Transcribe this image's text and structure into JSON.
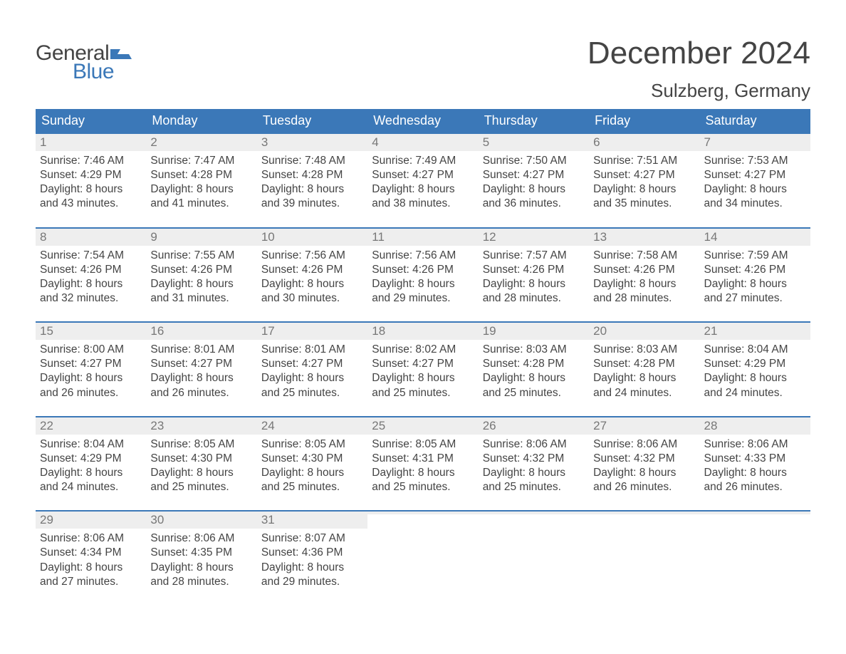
{
  "logo": {
    "word1": "General",
    "word2": "Blue",
    "flag_color": "#3b78b8"
  },
  "title": "December 2024",
  "subtitle": "Sulzberg, Germany",
  "colors": {
    "header_bg": "#3b78b8",
    "header_text": "#ffffff",
    "daynum_bg": "#eeeeee",
    "daynum_text": "#777777",
    "body_text": "#444444",
    "week_border": "#3b78b8",
    "page_bg": "#ffffff"
  },
  "fonts": {
    "title_size_pt": 33,
    "subtitle_size_pt": 20,
    "dow_size_pt": 14,
    "daynum_size_pt": 13,
    "body_size_pt": 12
  },
  "dow": [
    "Sunday",
    "Monday",
    "Tuesday",
    "Wednesday",
    "Thursday",
    "Friday",
    "Saturday"
  ],
  "weeks": [
    [
      {
        "n": "1",
        "sunrise": "Sunrise: 7:46 AM",
        "sunset": "Sunset: 4:29 PM",
        "d1": "Daylight: 8 hours",
        "d2": "and 43 minutes."
      },
      {
        "n": "2",
        "sunrise": "Sunrise: 7:47 AM",
        "sunset": "Sunset: 4:28 PM",
        "d1": "Daylight: 8 hours",
        "d2": "and 41 minutes."
      },
      {
        "n": "3",
        "sunrise": "Sunrise: 7:48 AM",
        "sunset": "Sunset: 4:28 PM",
        "d1": "Daylight: 8 hours",
        "d2": "and 39 minutes."
      },
      {
        "n": "4",
        "sunrise": "Sunrise: 7:49 AM",
        "sunset": "Sunset: 4:27 PM",
        "d1": "Daylight: 8 hours",
        "d2": "and 38 minutes."
      },
      {
        "n": "5",
        "sunrise": "Sunrise: 7:50 AM",
        "sunset": "Sunset: 4:27 PM",
        "d1": "Daylight: 8 hours",
        "d2": "and 36 minutes."
      },
      {
        "n": "6",
        "sunrise": "Sunrise: 7:51 AM",
        "sunset": "Sunset: 4:27 PM",
        "d1": "Daylight: 8 hours",
        "d2": "and 35 minutes."
      },
      {
        "n": "7",
        "sunrise": "Sunrise: 7:53 AM",
        "sunset": "Sunset: 4:27 PM",
        "d1": "Daylight: 8 hours",
        "d2": "and 34 minutes."
      }
    ],
    [
      {
        "n": "8",
        "sunrise": "Sunrise: 7:54 AM",
        "sunset": "Sunset: 4:26 PM",
        "d1": "Daylight: 8 hours",
        "d2": "and 32 minutes."
      },
      {
        "n": "9",
        "sunrise": "Sunrise: 7:55 AM",
        "sunset": "Sunset: 4:26 PM",
        "d1": "Daylight: 8 hours",
        "d2": "and 31 minutes."
      },
      {
        "n": "10",
        "sunrise": "Sunrise: 7:56 AM",
        "sunset": "Sunset: 4:26 PM",
        "d1": "Daylight: 8 hours",
        "d2": "and 30 minutes."
      },
      {
        "n": "11",
        "sunrise": "Sunrise: 7:56 AM",
        "sunset": "Sunset: 4:26 PM",
        "d1": "Daylight: 8 hours",
        "d2": "and 29 minutes."
      },
      {
        "n": "12",
        "sunrise": "Sunrise: 7:57 AM",
        "sunset": "Sunset: 4:26 PM",
        "d1": "Daylight: 8 hours",
        "d2": "and 28 minutes."
      },
      {
        "n": "13",
        "sunrise": "Sunrise: 7:58 AM",
        "sunset": "Sunset: 4:26 PM",
        "d1": "Daylight: 8 hours",
        "d2": "and 28 minutes."
      },
      {
        "n": "14",
        "sunrise": "Sunrise: 7:59 AM",
        "sunset": "Sunset: 4:26 PM",
        "d1": "Daylight: 8 hours",
        "d2": "and 27 minutes."
      }
    ],
    [
      {
        "n": "15",
        "sunrise": "Sunrise: 8:00 AM",
        "sunset": "Sunset: 4:27 PM",
        "d1": "Daylight: 8 hours",
        "d2": "and 26 minutes."
      },
      {
        "n": "16",
        "sunrise": "Sunrise: 8:01 AM",
        "sunset": "Sunset: 4:27 PM",
        "d1": "Daylight: 8 hours",
        "d2": "and 26 minutes."
      },
      {
        "n": "17",
        "sunrise": "Sunrise: 8:01 AM",
        "sunset": "Sunset: 4:27 PM",
        "d1": "Daylight: 8 hours",
        "d2": "and 25 minutes."
      },
      {
        "n": "18",
        "sunrise": "Sunrise: 8:02 AM",
        "sunset": "Sunset: 4:27 PM",
        "d1": "Daylight: 8 hours",
        "d2": "and 25 minutes."
      },
      {
        "n": "19",
        "sunrise": "Sunrise: 8:03 AM",
        "sunset": "Sunset: 4:28 PM",
        "d1": "Daylight: 8 hours",
        "d2": "and 25 minutes."
      },
      {
        "n": "20",
        "sunrise": "Sunrise: 8:03 AM",
        "sunset": "Sunset: 4:28 PM",
        "d1": "Daylight: 8 hours",
        "d2": "and 24 minutes."
      },
      {
        "n": "21",
        "sunrise": "Sunrise: 8:04 AM",
        "sunset": "Sunset: 4:29 PM",
        "d1": "Daylight: 8 hours",
        "d2": "and 24 minutes."
      }
    ],
    [
      {
        "n": "22",
        "sunrise": "Sunrise: 8:04 AM",
        "sunset": "Sunset: 4:29 PM",
        "d1": "Daylight: 8 hours",
        "d2": "and 24 minutes."
      },
      {
        "n": "23",
        "sunrise": "Sunrise: 8:05 AM",
        "sunset": "Sunset: 4:30 PM",
        "d1": "Daylight: 8 hours",
        "d2": "and 25 minutes."
      },
      {
        "n": "24",
        "sunrise": "Sunrise: 8:05 AM",
        "sunset": "Sunset: 4:30 PM",
        "d1": "Daylight: 8 hours",
        "d2": "and 25 minutes."
      },
      {
        "n": "25",
        "sunrise": "Sunrise: 8:05 AM",
        "sunset": "Sunset: 4:31 PM",
        "d1": "Daylight: 8 hours",
        "d2": "and 25 minutes."
      },
      {
        "n": "26",
        "sunrise": "Sunrise: 8:06 AM",
        "sunset": "Sunset: 4:32 PM",
        "d1": "Daylight: 8 hours",
        "d2": "and 25 minutes."
      },
      {
        "n": "27",
        "sunrise": "Sunrise: 8:06 AM",
        "sunset": "Sunset: 4:32 PM",
        "d1": "Daylight: 8 hours",
        "d2": "and 26 minutes."
      },
      {
        "n": "28",
        "sunrise": "Sunrise: 8:06 AM",
        "sunset": "Sunset: 4:33 PM",
        "d1": "Daylight: 8 hours",
        "d2": "and 26 minutes."
      }
    ],
    [
      {
        "n": "29",
        "sunrise": "Sunrise: 8:06 AM",
        "sunset": "Sunset: 4:34 PM",
        "d1": "Daylight: 8 hours",
        "d2": "and 27 minutes."
      },
      {
        "n": "30",
        "sunrise": "Sunrise: 8:06 AM",
        "sunset": "Sunset: 4:35 PM",
        "d1": "Daylight: 8 hours",
        "d2": "and 28 minutes."
      },
      {
        "n": "31",
        "sunrise": "Sunrise: 8:07 AM",
        "sunset": "Sunset: 4:36 PM",
        "d1": "Daylight: 8 hours",
        "d2": "and 29 minutes."
      },
      {
        "empty": true
      },
      {
        "empty": true
      },
      {
        "empty": true
      },
      {
        "empty": true
      }
    ]
  ]
}
